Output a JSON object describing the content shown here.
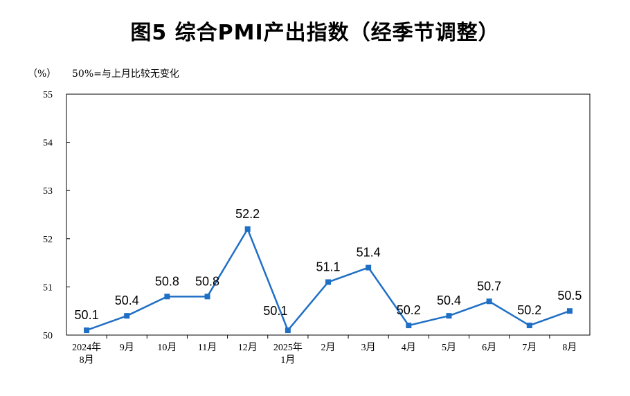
{
  "title": "图5  综合PMI产出指数（经季节调整）",
  "unit": "（%）",
  "note": "50%=与上月比较无变化",
  "colors": {
    "line": "#1f6fc5",
    "axis": "#000000"
  },
  "chart_data": {
    "type": "line",
    "title": "图5  综合PMI产出指数（经季节调整）",
    "ylabel": "（%）",
    "ylim": [
      50,
      55
    ],
    "yticks": [
      50,
      51,
      52,
      53,
      54,
      55
    ],
    "grid": false,
    "categories": [
      [
        "2024年",
        "8月"
      ],
      [
        "9月"
      ],
      [
        "10月"
      ],
      [
        "11月"
      ],
      [
        "12月"
      ],
      [
        "2025年",
        "1月"
      ],
      [
        "2月"
      ],
      [
        "3月"
      ],
      [
        "4月"
      ],
      [
        "5月"
      ],
      [
        "6月"
      ],
      [
        "7月"
      ],
      [
        "8月"
      ]
    ],
    "values": [
      50.1,
      50.4,
      50.8,
      50.8,
      52.2,
      50.1,
      51.1,
      51.4,
      50.2,
      50.4,
      50.7,
      50.2,
      50.5
    ]
  }
}
